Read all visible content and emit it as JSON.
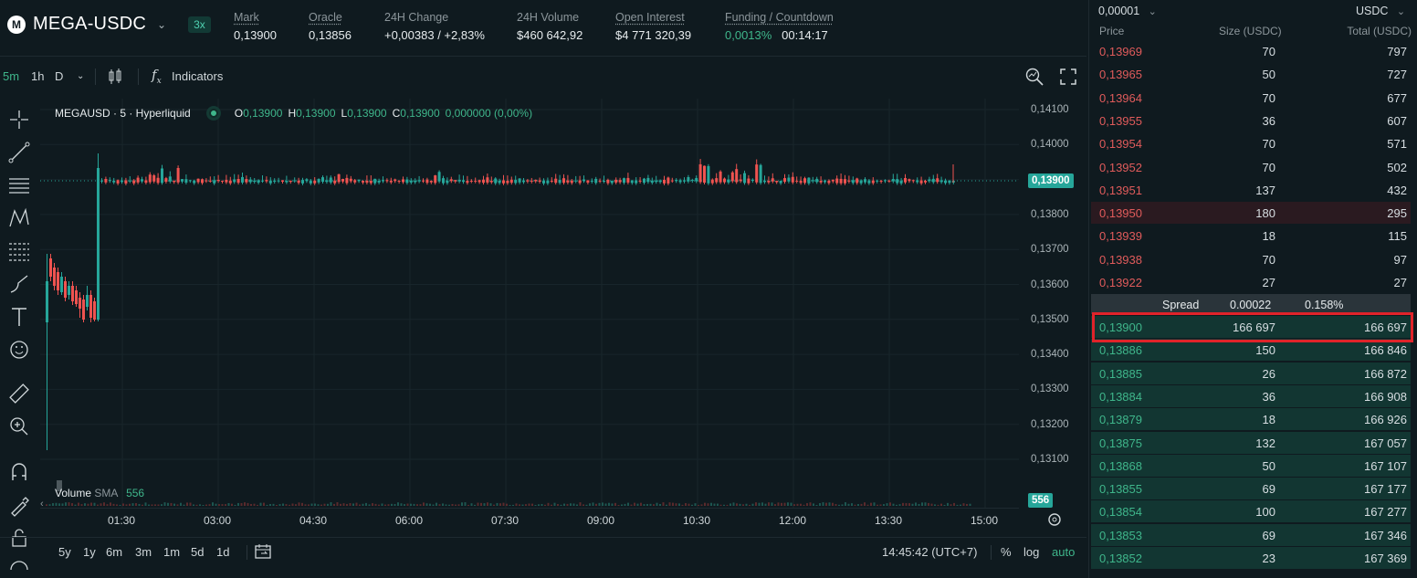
{
  "header": {
    "logo_letter": "M",
    "pair": "MEGA-USDC",
    "leverage": "3x",
    "stats": [
      {
        "label": "Mark",
        "value": "0,13900",
        "underline": true
      },
      {
        "label": "Oracle",
        "value": "0,13856",
        "underline": true
      },
      {
        "label": "24H Change",
        "value": "+0,00383 / +2,83%",
        "underline": false
      },
      {
        "label": "24H Volume",
        "value": "$460 642,92",
        "underline": false
      },
      {
        "label": "Open Interest",
        "value": "$4 771 320,39",
        "underline": true
      },
      {
        "label": "Funding / Countdown",
        "value": "0,0013%",
        "value2": "00:14:17",
        "underline": true
      }
    ]
  },
  "toolbar": {
    "interval_5m": "5m",
    "interval_1h": "1h",
    "interval_d": "D",
    "indicators": "Indicators"
  },
  "legend": {
    "symbol": "MEGAUSD · 5 · Hyperliquid",
    "o_key": "O",
    "o": "0,13900",
    "h_key": "H",
    "h": "0,13900",
    "l_key": "L",
    "l": "0,13900",
    "c_key": "C",
    "c": "0,13900",
    "chg": "0,000000 (0,00%)"
  },
  "volume_legend": {
    "label": "Volume",
    "sma": "SMA",
    "value": "556"
  },
  "price_axis": [
    "0,14100",
    "0,14000",
    "0,13900",
    "0,13800",
    "0,13700",
    "0,13600",
    "0,13500",
    "0,13400",
    "0,13300",
    "0,13200",
    "0,13100"
  ],
  "last_price_tag": "0,13900",
  "volume_tag": "556",
  "time_axis": [
    "01:30",
    "03:00",
    "04:30",
    "06:00",
    "07:30",
    "09:00",
    "10:30",
    "12:00",
    "13:30",
    "15:00"
  ],
  "bottom": {
    "ranges": [
      "5y",
      "1y",
      "6m",
      "3m",
      "1m",
      "5d",
      "1d"
    ],
    "clock": "14:45:42 (UTC+7)",
    "pct": "%",
    "log": "log",
    "auto": "auto"
  },
  "orderbook": {
    "tick": "0,00001",
    "currency": "USDC",
    "col_price": "Price",
    "col_size": "Size (USDC)",
    "col_total": "Total (USDC)",
    "asks": [
      {
        "price": "0,13969",
        "size": "70",
        "total": "797"
      },
      {
        "price": "0,13965",
        "size": "50",
        "total": "727"
      },
      {
        "price": "0,13964",
        "size": "70",
        "total": "677"
      },
      {
        "price": "0,13955",
        "size": "36",
        "total": "607"
      },
      {
        "price": "0,13954",
        "size": "70",
        "total": "571"
      },
      {
        "price": "0,13952",
        "size": "70",
        "total": "502"
      },
      {
        "price": "0,13951",
        "size": "137",
        "total": "432"
      },
      {
        "price": "0,13950",
        "size": "180",
        "total": "295"
      },
      {
        "price": "0,13939",
        "size": "18",
        "total": "115"
      },
      {
        "price": "0,13938",
        "size": "70",
        "total": "97"
      },
      {
        "price": "0,13922",
        "size": "27",
        "total": "27"
      }
    ],
    "spread_label": "Spread",
    "spread_value": "0.00022",
    "spread_pct": "0.158%",
    "bids": [
      {
        "price": "0,13900",
        "size": "166 697",
        "total": "166 697"
      },
      {
        "price": "0,13886",
        "size": "150",
        "total": "166 846"
      },
      {
        "price": "0,13885",
        "size": "26",
        "total": "166 872"
      },
      {
        "price": "0,13884",
        "size": "36",
        "total": "166 908"
      },
      {
        "price": "0,13879",
        "size": "18",
        "total": "166 926"
      },
      {
        "price": "0,13875",
        "size": "132",
        "total": "167 057"
      },
      {
        "price": "0,13868",
        "size": "50",
        "total": "167 107"
      },
      {
        "price": "0,13855",
        "size": "69",
        "total": "167 177"
      },
      {
        "price": "0,13854",
        "size": "100",
        "total": "167 277"
      },
      {
        "price": "0,13853",
        "size": "69",
        "total": "167 346"
      },
      {
        "price": "0,13852",
        "size": "23",
        "total": "167 369"
      }
    ]
  },
  "colors": {
    "up": "#26a69a",
    "down": "#ef5350",
    "accent": "#3fb68b",
    "highlight": "#e0232a"
  }
}
